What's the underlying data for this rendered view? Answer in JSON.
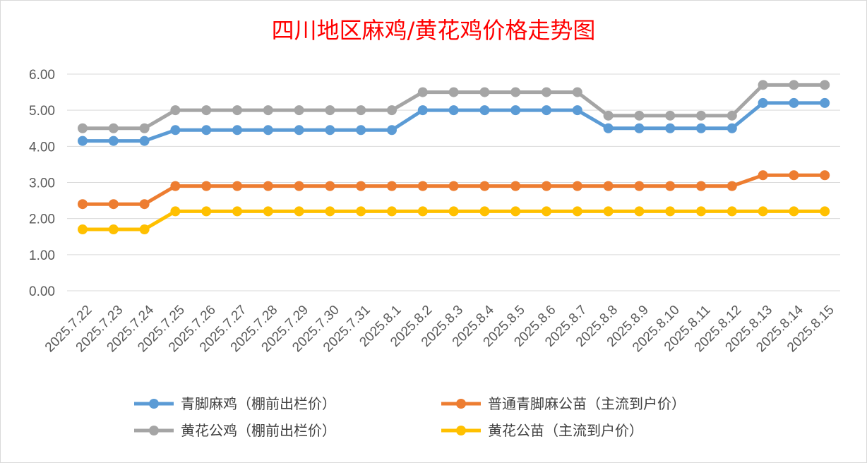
{
  "chart_data": {
    "type": "line",
    "title": "四川地区麻鸡/黄花鸡价格走势图",
    "xlabel": "",
    "ylabel": "",
    "ylim": [
      0,
      6
    ],
    "yticks": [
      "0.00",
      "1.00",
      "2.00",
      "3.00",
      "4.00",
      "5.00",
      "6.00"
    ],
    "grid": true,
    "legend_position": "bottom",
    "categories": [
      "2025.7.22",
      "2025.7.23",
      "2025.7.24",
      "2025.7.25",
      "2025.7.26",
      "2025.7.27",
      "2025.7.28",
      "2025.7.29",
      "2025.7.30",
      "2025.7.31",
      "2025.8.1",
      "2025.8.2",
      "2025.8.3",
      "2025.8.4",
      "2025.8.5",
      "2025.8.6",
      "2025.8.7",
      "2025.8.8",
      "2025.8.9",
      "2025.8.10",
      "2025.8.11",
      "2025.8.12",
      "2025.8.13",
      "2025.8.14",
      "2025.8.15"
    ],
    "series": [
      {
        "name": "青脚麻鸡（棚前出栏价）",
        "color": "#5b9bd5",
        "values": [
          4.15,
          4.15,
          4.15,
          4.45,
          4.45,
          4.45,
          4.45,
          4.45,
          4.45,
          4.45,
          4.45,
          5.0,
          5.0,
          5.0,
          5.0,
          5.0,
          5.0,
          4.5,
          4.5,
          4.5,
          4.5,
          4.5,
          5.2,
          5.2,
          5.2
        ]
      },
      {
        "name": "普通青脚麻公苗（主流到户价）",
        "color": "#ed7d31",
        "values": [
          2.4,
          2.4,
          2.4,
          2.9,
          2.9,
          2.9,
          2.9,
          2.9,
          2.9,
          2.9,
          2.9,
          2.9,
          2.9,
          2.9,
          2.9,
          2.9,
          2.9,
          2.9,
          2.9,
          2.9,
          2.9,
          2.9,
          3.2,
          3.2,
          3.2
        ]
      },
      {
        "name": "黄花公鸡（棚前出栏价）",
        "color": "#a5a5a5",
        "values": [
          4.5,
          4.5,
          4.5,
          5.0,
          5.0,
          5.0,
          5.0,
          5.0,
          5.0,
          5.0,
          5.0,
          5.5,
          5.5,
          5.5,
          5.5,
          5.5,
          5.5,
          4.85,
          4.85,
          4.85,
          4.85,
          4.85,
          5.7,
          5.7,
          5.7
        ]
      },
      {
        "name": "黄花公苗（主流到户价）",
        "color": "#ffc000",
        "values": [
          1.7,
          1.7,
          1.7,
          2.2,
          2.2,
          2.2,
          2.2,
          2.2,
          2.2,
          2.2,
          2.2,
          2.2,
          2.2,
          2.2,
          2.2,
          2.2,
          2.2,
          2.2,
          2.2,
          2.2,
          2.2,
          2.2,
          2.2,
          2.2,
          2.2
        ]
      }
    ],
    "legend_order": [
      0,
      1,
      2,
      3
    ]
  }
}
